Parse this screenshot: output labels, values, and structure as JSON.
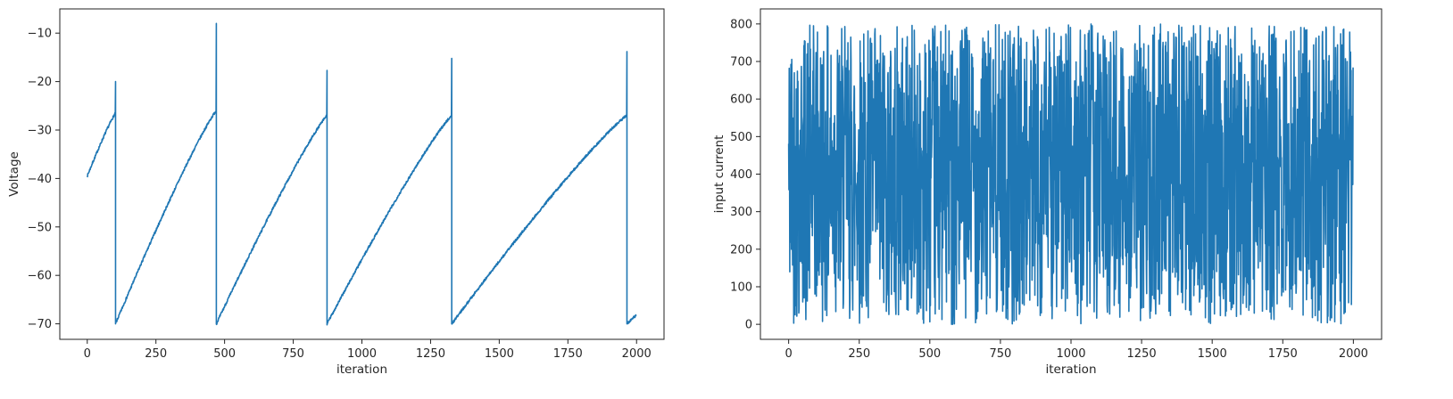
{
  "chart_data": [
    {
      "type": "line",
      "title": "",
      "xlabel": "iteration",
      "ylabel": "Voltage",
      "xlim": [
        -100,
        2100
      ],
      "ylim": [
        -73.2,
        -5.0
      ],
      "xticks": [
        0,
        250,
        500,
        750,
        1000,
        1250,
        1500,
        1750,
        2000
      ],
      "yticks": [
        -70,
        -60,
        -50,
        -40,
        -30,
        -20,
        -10
      ],
      "ytick_labels": [
        "−70",
        "−60",
        "−50",
        "−40",
        "−30",
        "−20",
        "−10"
      ],
      "grid": false,
      "color": "#1f77b4",
      "series": [
        {
          "ramps": [
            {
              "x0": 0,
              "x1": 103,
              "v0": -39.5,
              "v1": -26.5,
              "peak": -20.0
            },
            {
              "x0": 103,
              "x1": 470,
              "v0": -70.0,
              "v1": -26.0,
              "peak": -8.0
            },
            {
              "x0": 470,
              "x1": 873,
              "v0": -70.0,
              "v1": -27.0,
              "peak": -17.7
            },
            {
              "x0": 873,
              "x1": 1327,
              "v0": -70.0,
              "v1": -27.0,
              "peak": -15.2
            },
            {
              "x0": 1327,
              "x1": 1965,
              "v0": -70.0,
              "v1": -27.0,
              "peak": -13.8
            },
            {
              "x0": 1965,
              "x1": 2000,
              "v0": -70.0,
              "v1": -68.2,
              "peak": null
            }
          ]
        }
      ]
    },
    {
      "type": "line",
      "title": "",
      "xlabel": "iteration",
      "ylabel": "input current",
      "xlim": [
        -100,
        2100
      ],
      "ylim": [
        -40,
        840
      ],
      "xticks": [
        0,
        250,
        500,
        750,
        1000,
        1250,
        1500,
        1750,
        2000
      ],
      "yticks": [
        0,
        100,
        200,
        300,
        400,
        500,
        600,
        700,
        800
      ],
      "grid": false,
      "color": "#1f77b4",
      "series": [
        {
          "n_points": 2000,
          "x_range": [
            0,
            1999
          ],
          "y_range": [
            0,
            800
          ],
          "pattern": "random noise"
        }
      ]
    }
  ]
}
